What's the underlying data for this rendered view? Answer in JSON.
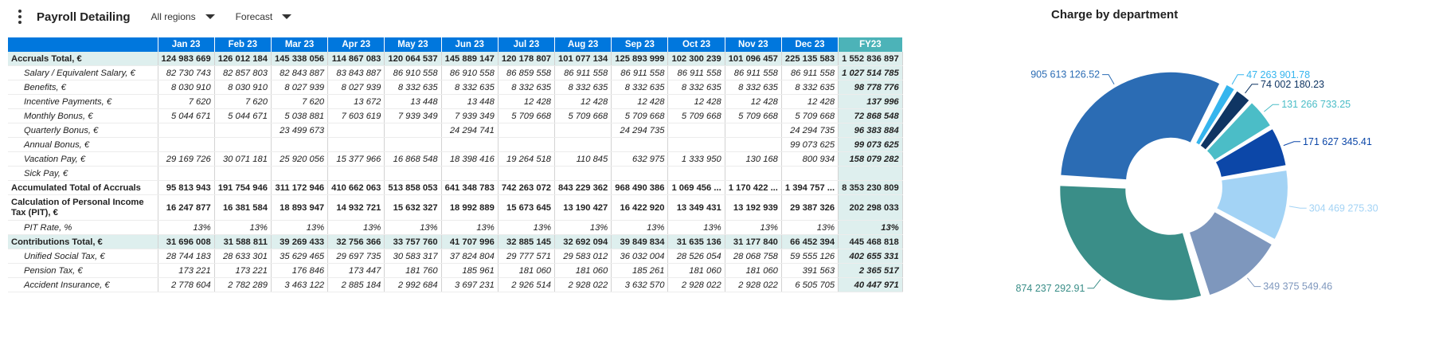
{
  "header": {
    "title": "Payroll Detailing",
    "region_filter": "All regions",
    "scenario_filter": "Forecast"
  },
  "table": {
    "columns": [
      "Jan 23",
      "Feb 23",
      "Mar 23",
      "Apr 23",
      "May 23",
      "Jun 23",
      "Jul 23",
      "Aug 23",
      "Sep 23",
      "Oct 23",
      "Nov 23",
      "Dec 23",
      "FY23"
    ],
    "rows": [
      {
        "label": "Accruals Total, €",
        "style": "total",
        "cells": [
          "124 983 669",
          "126 012 184",
          "145 338 056",
          "114 867 083",
          "120 064 537",
          "145 889 147",
          "120 178 807",
          "101 077 134",
          "125 893 999",
          "102 300 239",
          "101 096 457",
          "225 135 583",
          "1 552 836 897"
        ]
      },
      {
        "label": "Salary / Equivalent Salary, €",
        "style": "sub",
        "cells": [
          "82 730 743",
          "82 857 803",
          "82 843 887",
          "83 843 887",
          "86 910 558",
          "86 910 558",
          "86 859 558",
          "86 911 558",
          "86 911 558",
          "86 911 558",
          "86 911 558",
          "86 911 558",
          "1 027 514 785"
        ]
      },
      {
        "label": "Benefits, €",
        "style": "sub",
        "cells": [
          "8 030 910",
          "8 030 910",
          "8 027 939",
          "8 027 939",
          "8 332 635",
          "8 332 635",
          "8 332 635",
          "8 332 635",
          "8 332 635",
          "8 332 635",
          "8 332 635",
          "8 332 635",
          "98 778 776"
        ]
      },
      {
        "label": "Incentive Payments, €",
        "style": "sub",
        "cells": [
          "7 620",
          "7 620",
          "7 620",
          "13 672",
          "13 448",
          "13 448",
          "12 428",
          "12 428",
          "12 428",
          "12 428",
          "12 428",
          "12 428",
          "137 996"
        ]
      },
      {
        "label": "Monthly Bonus, €",
        "style": "sub",
        "cells": [
          "5 044 671",
          "5 044 671",
          "5 038 881",
          "7 603 619",
          "7 939 349",
          "7 939 349",
          "5 709 668",
          "5 709 668",
          "5 709 668",
          "5 709 668",
          "5 709 668",
          "5 709 668",
          "72 868 548"
        ]
      },
      {
        "label": "Quarterly Bonus, €",
        "style": "sub",
        "cells": [
          "",
          "",
          "23 499 673",
          "",
          "",
          "24 294 741",
          "",
          "",
          "24 294 735",
          "",
          "",
          "24 294 735",
          "96 383 884"
        ]
      },
      {
        "label": "Annual Bonus, €",
        "style": "sub",
        "cells": [
          "",
          "",
          "",
          "",
          "",
          "",
          "",
          "",
          "",
          "",
          "",
          "99 073 625",
          "99 073 625"
        ]
      },
      {
        "label": "Vacation Pay, €",
        "style": "sub",
        "cells": [
          "29 169 726",
          "30 071 181",
          "25 920 056",
          "15 377 966",
          "16 868 548",
          "18 398 416",
          "19 264 518",
          "110 845",
          "632 975",
          "1 333 950",
          "130 168",
          "800 934",
          "158 079 282"
        ]
      },
      {
        "label": "Sick Pay, €",
        "style": "sub",
        "cells": [
          "",
          "",
          "",
          "",
          "",
          "",
          "",
          "",
          "",
          "",
          "",
          "",
          ""
        ]
      },
      {
        "label": "Accumulated Total of Accruals",
        "style": "bold",
        "cells": [
          "95 813 943",
          "191 754 946",
          "311 172 946",
          "410 662 063",
          "513 858 053",
          "641 348 783",
          "742 263 072",
          "843 229 362",
          "968 490 386",
          "1 069 456 ...",
          "1 170 422 ...",
          "1 394 757 ...",
          "8 353 230 809"
        ]
      },
      {
        "label": "Calculation of Personal Income Tax (PIT), €",
        "style": "bold tall",
        "cells": [
          "16 247 877",
          "16 381 584",
          "18 893 947",
          "14 932 721",
          "15 632 327",
          "18 992 889",
          "15 673 645",
          "13 190 427",
          "16 422 920",
          "13 349 431",
          "13 192 939",
          "29 387 326",
          "202 298 033"
        ]
      },
      {
        "label": "PIT Rate, %",
        "style": "sub",
        "cells": [
          "13%",
          "13%",
          "13%",
          "13%",
          "13%",
          "13%",
          "13%",
          "13%",
          "13%",
          "13%",
          "13%",
          "13%",
          "13%"
        ]
      },
      {
        "label": "Contributions Total, €",
        "style": "total",
        "cells": [
          "31 696 008",
          "31 588 811",
          "39 269 433",
          "32 756 366",
          "33 757 760",
          "41 707 996",
          "32 885 145",
          "32 692 094",
          "39 849 834",
          "31 635 136",
          "31 177 840",
          "66 452 394",
          "445 468 818"
        ]
      },
      {
        "label": "Unified Social Tax, €",
        "style": "sub",
        "cells": [
          "28 744 183",
          "28 633 301",
          "35 629 465",
          "29 697 735",
          "30 583 317",
          "37 824 804",
          "29 777 571",
          "29 583 012",
          "36 032 004",
          "28 526 054",
          "28 068 758",
          "59 555 126",
          "402 655 331"
        ]
      },
      {
        "label": "Pension Tax, €",
        "style": "sub",
        "cells": [
          "173 221",
          "173 221",
          "176 846",
          "173 447",
          "181 760",
          "185 961",
          "181 060",
          "181 060",
          "185 261",
          "181 060",
          "181 060",
          "391 563",
          "2 365 517"
        ]
      },
      {
        "label": "Accident Insurance, €",
        "style": "sub",
        "cells": [
          "2 778 604",
          "2 782 289",
          "3 463 122",
          "2 885 184",
          "2 992 684",
          "3 697 231",
          "2 926 514",
          "2 928 022",
          "3 632 570",
          "2 928 022",
          "2 928 022",
          "6 505 705",
          "40 447 971"
        ]
      }
    ]
  },
  "chart_data": {
    "type": "pie",
    "title": "Charge by department",
    "donut": true,
    "slices": [
      {
        "label": "905 613 126.52",
        "value": 905613126.52,
        "color": "#2b6cb4"
      },
      {
        "label": "47 263 901.78",
        "value": 47263901.78,
        "color": "#35b5ee"
      },
      {
        "label": "74 002 180.23",
        "value": 74002180.23,
        "color": "#0f3563"
      },
      {
        "label": "131 266 733.25",
        "value": 131266733.25,
        "color": "#4bbdc7"
      },
      {
        "label": "171 627 345.41",
        "value": 171627345.41,
        "color": "#0c47a8"
      },
      {
        "label": "304 469 275.30",
        "value": 304469275.3,
        "color": "#a3d3f5"
      },
      {
        "label": "349 375 549.46",
        "value": 349375549.46,
        "color": "#7e97bd"
      },
      {
        "label": "874 237 292.91",
        "value": 874237292.91,
        "color": "#3a8e88"
      }
    ]
  }
}
